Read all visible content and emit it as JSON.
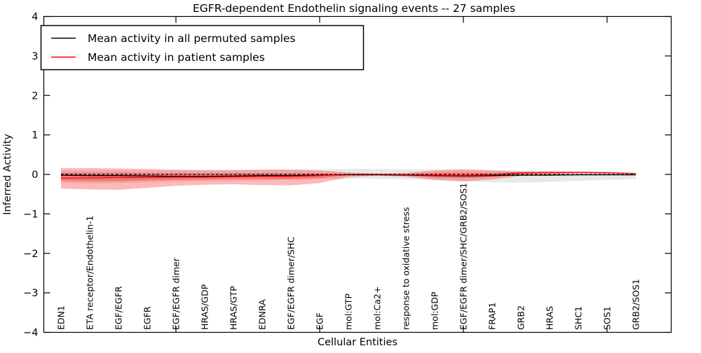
{
  "chart_data": {
    "type": "line",
    "title": "EGFR-dependent Endothelin signaling events -- 27 samples",
    "xlabel": "Cellular Entities",
    "ylabel": "Inferred Activity",
    "ylim": [
      -4,
      4
    ],
    "grid": false,
    "legend_position": "upper left",
    "yticks": [
      {
        "label": "4",
        "value": 4
      },
      {
        "label": "3",
        "value": 3
      },
      {
        "label": "2",
        "value": 2
      },
      {
        "label": "1",
        "value": 1
      },
      {
        "label": "0",
        "value": 0
      },
      {
        "label": "−1",
        "value": -1
      },
      {
        "label": "−2",
        "value": -2
      },
      {
        "label": "−3",
        "value": -3
      },
      {
        "label": "−4",
        "value": -4
      }
    ],
    "xtick_indices": [
      4,
      9,
      14,
      19
    ],
    "categories": [
      "EDN1",
      "ETA receptor/Endothelin-1",
      "EGF/EGFR",
      "EGFR",
      "EGF/EGFR dimer",
      "HRAS/GDP",
      "HRAS/GTP",
      "EDNRA",
      "EGF/EGFR dimer/SHC",
      "EGF",
      "mol:GTP",
      "mol:Ca2+",
      "response to oxidative stress",
      "mol:GDP",
      "EGF/EGFR dimer/SHC/GRB2/SOS1",
      "FRAP1",
      "GRB2",
      "HRAS",
      "SHC1",
      "SOS1",
      "GRB2/SOS1"
    ],
    "series": [
      {
        "name": "Mean activity in all permuted samples",
        "color": "#000000",
        "values": [
          -0.02,
          -0.03,
          -0.03,
          -0.04,
          -0.05,
          -0.05,
          -0.04,
          -0.03,
          -0.03,
          -0.02,
          -0.01,
          -0.01,
          -0.02,
          -0.03,
          -0.04,
          -0.03,
          -0.02,
          -0.02,
          -0.01,
          -0.01,
          -0.01
        ]
      },
      {
        "name": "Mean activity in patient samples",
        "color": "#ff0000",
        "values": [
          -0.09,
          -0.09,
          -0.08,
          -0.08,
          -0.07,
          -0.07,
          -0.06,
          -0.05,
          -0.05,
          -0.03,
          0.0,
          0.0,
          -0.01,
          -0.02,
          -0.03,
          -0.01,
          0.04,
          0.05,
          0.05,
          0.04,
          0.02
        ]
      }
    ],
    "bands": [
      {
        "name": "permuted-range",
        "fill": "rgba(0,0,0,0.09)",
        "upper": [
          0.1,
          0.1,
          0.1,
          0.09,
          0.1,
          0.1,
          0.11,
          0.12,
          0.13,
          0.13,
          0.14,
          0.14,
          0.13,
          0.13,
          0.12,
          0.11,
          0.1,
          0.1,
          0.09,
          0.08,
          0.06
        ],
        "lower": [
          -0.21,
          -0.23,
          -0.22,
          -0.2,
          -0.18,
          -0.17,
          -0.16,
          -0.15,
          -0.13,
          -0.11,
          -0.11,
          -0.11,
          -0.12,
          -0.14,
          -0.17,
          -0.2,
          -0.21,
          -0.19,
          -0.16,
          -0.14,
          -0.12
        ]
      },
      {
        "name": "patient-range-outer",
        "fill": "rgba(255,0,0,0.28)",
        "upper": [
          0.16,
          0.16,
          0.15,
          0.14,
          0.12,
          0.11,
          0.11,
          0.12,
          0.12,
          0.1,
          0.05,
          0.02,
          0.04,
          0.1,
          0.13,
          0.1,
          0.07,
          0.06,
          0.06,
          0.05,
          0.03
        ],
        "lower": [
          -0.36,
          -0.38,
          -0.39,
          -0.34,
          -0.29,
          -0.26,
          -0.25,
          -0.27,
          -0.28,
          -0.22,
          -0.07,
          -0.03,
          -0.06,
          -0.14,
          -0.18,
          -0.13,
          -0.04,
          -0.01,
          0.03,
          0.02,
          0.01
        ]
      },
      {
        "name": "patient-range-inner",
        "fill": "rgba(255,0,0,0.28)",
        "upper": [
          0.04,
          0.04,
          0.04,
          0.03,
          0.03,
          0.03,
          0.03,
          0.03,
          0.03,
          0.03,
          0.01,
          0.01,
          0.01,
          0.04,
          0.05,
          0.04,
          0.06,
          0.06,
          0.06,
          0.05,
          0.03
        ],
        "lower": [
          -0.16,
          -0.17,
          -0.17,
          -0.15,
          -0.14,
          -0.13,
          -0.12,
          -0.12,
          -0.12,
          -0.1,
          -0.02,
          -0.01,
          -0.03,
          -0.08,
          -0.1,
          -0.07,
          0.01,
          0.02,
          0.04,
          0.03,
          0.01
        ]
      }
    ],
    "zero_line": {
      "style": "dashed",
      "color": "#000000",
      "y": 0
    }
  }
}
